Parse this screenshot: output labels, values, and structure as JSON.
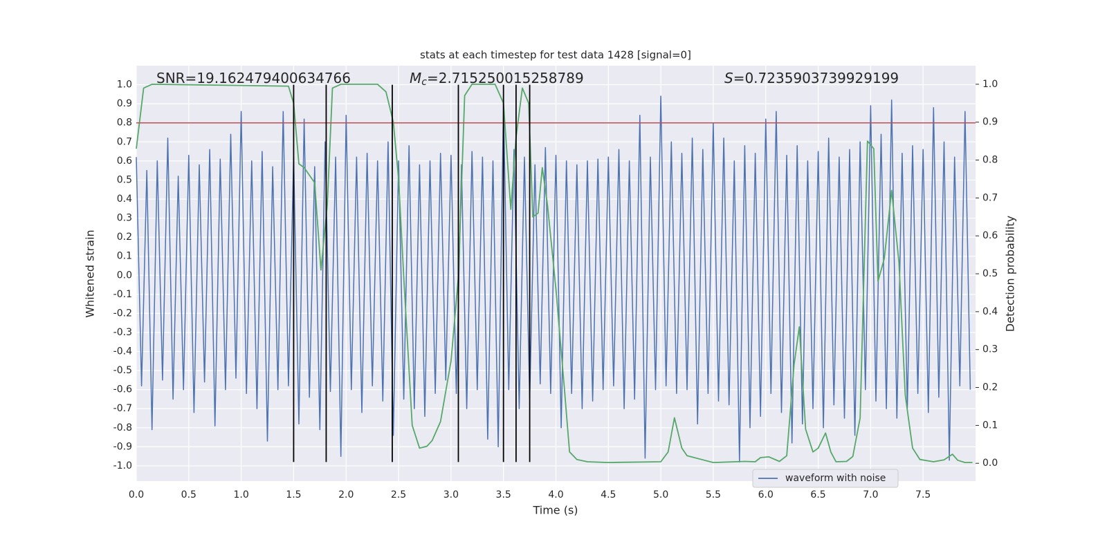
{
  "chart_data": {
    "type": "line",
    "title": "stats at each timestep for test data 1428 [signal=0]",
    "x_label": "Time (s)",
    "y_label": "Whitened strain",
    "y2_label": "Detection probability",
    "xlim": [
      0,
      8
    ],
    "ylim": [
      -1.08,
      1.1
    ],
    "y2lim": [
      -0.047,
      1.049
    ],
    "xticks": [
      {
        "value": 0,
        "label": "0.0"
      },
      0.5,
      {
        "value": 1,
        "label": "1.0"
      },
      1.5,
      {
        "value": 2,
        "label": "2.0"
      },
      2.5,
      {
        "value": 3,
        "label": "3.0"
      },
      3.5,
      {
        "value": 4,
        "label": "4.0"
      },
      4.5,
      {
        "value": 5,
        "label": "5.0"
      },
      5.5,
      {
        "value": 6,
        "label": "6.0"
      },
      6.5,
      {
        "value": 7,
        "label": "7.0"
      },
      7.5
    ],
    "yticks": [
      {
        "value": -1,
        "label": "-1.0"
      },
      -0.9,
      -0.8,
      -0.7,
      -0.6,
      -0.5,
      -0.4,
      -0.3,
      -0.2,
      -0.1,
      {
        "value": 0,
        "label": "0.0"
      },
      0.1,
      0.2,
      0.3,
      0.4,
      0.5,
      0.6,
      0.7,
      0.8,
      0.9,
      {
        "value": 1,
        "label": "1.0"
      }
    ],
    "y2ticks": [
      {
        "value": 0,
        "label": "0.0"
      },
      0.1,
      0.2,
      0.3,
      0.4,
      0.5,
      0.6,
      0.7,
      0.8,
      0.9,
      {
        "value": 1,
        "label": "1.0"
      }
    ],
    "grid": true,
    "background": "#eaeaf2",
    "legend": "lower right",
    "annotations": [
      {
        "text": "SNR=19.162479400634766"
      },
      {
        "symbol": "M",
        "subscript": "c",
        "text": "=2.715250015258789"
      },
      {
        "symbol": "S",
        "text": "=0.7235903739929199"
      }
    ],
    "threshold": 0.8,
    "threshold_color": "#c44e52",
    "vlines": {
      "x": [
        1.5,
        1.81,
        2.44,
        3.07,
        3.5,
        3.62,
        3.75
      ],
      "ymin": -0.98,
      "ymax": 1.0,
      "color": "#000000"
    },
    "series": [
      {
        "name": "waveform with noise",
        "color": "#4c72b0",
        "x": [
          0,
          0.05,
          0.1,
          0.15,
          0.2,
          0.25,
          0.3,
          0.35,
          0.4,
          0.45,
          0.5,
          0.55,
          0.6,
          0.65,
          0.7,
          0.75,
          0.8,
          0.85,
          0.9,
          0.95,
          1,
          1.05,
          1.1,
          1.15,
          1.2,
          1.25,
          1.3,
          1.35,
          1.4,
          1.45,
          1.5,
          1.55,
          1.6,
          1.65,
          1.7,
          1.75,
          1.8,
          1.85,
          1.9,
          1.95,
          2,
          2.05,
          2.1,
          2.15,
          2.2,
          2.25,
          2.3,
          2.35,
          2.4,
          2.45,
          2.5,
          2.55,
          2.6,
          2.65,
          2.7,
          2.75,
          2.8,
          2.85,
          2.9,
          2.95,
          3,
          3.05,
          3.1,
          3.15,
          3.2,
          3.25,
          3.3,
          3.35,
          3.4,
          3.45,
          3.5,
          3.55,
          3.6,
          3.65,
          3.7,
          3.75,
          3.8,
          3.85,
          3.9,
          3.95,
          4,
          4.05,
          4.1,
          4.15,
          4.2,
          4.25,
          4.3,
          4.35,
          4.4,
          4.45,
          4.5,
          4.55,
          4.6,
          4.65,
          4.7,
          4.75,
          4.8,
          4.85,
          4.9,
          4.95,
          5,
          5.05,
          5.1,
          5.15,
          5.2,
          5.25,
          5.3,
          5.35,
          5.4,
          5.45,
          5.5,
          5.55,
          5.6,
          5.65,
          5.7,
          5.75,
          5.8,
          5.85,
          5.9,
          5.95,
          6,
          6.05,
          6.1,
          6.15,
          6.2,
          6.25,
          6.3,
          6.35,
          6.4,
          6.45,
          6.5,
          6.55,
          6.6,
          6.65,
          6.7,
          6.75,
          6.8,
          6.85,
          6.9,
          6.95,
          7,
          7.05,
          7.1,
          7.15,
          7.2,
          7.25,
          7.3,
          7.35,
          7.4,
          7.45,
          7.5,
          7.55,
          7.6,
          7.65,
          7.7,
          7.75,
          7.8,
          7.85,
          7.9,
          7.95
        ],
        "values": [
          0.62,
          -0.58,
          0.55,
          -0.81,
          0.6,
          -0.55,
          0.72,
          -0.65,
          0.52,
          -0.6,
          0.63,
          -0.72,
          0.58,
          -0.56,
          0.66,
          -0.79,
          0.61,
          -0.6,
          0.74,
          -0.54,
          0.86,
          -0.62,
          0.6,
          -0.7,
          0.65,
          -0.87,
          0.57,
          -0.6,
          0.86,
          -0.58,
          0.62,
          -0.78,
          0.82,
          -0.64,
          0.57,
          -0.81,
          0.7,
          -0.61,
          0.62,
          -0.95,
          0.84,
          -0.6,
          0.62,
          -0.72,
          0.64,
          -0.58,
          0.6,
          -0.66,
          0.7,
          -0.84,
          0.6,
          -0.65,
          0.68,
          -0.7,
          0.58,
          -0.74,
          0.6,
          -0.62,
          0.64,
          -0.55,
          0.63,
          -0.62,
          0.58,
          -0.7,
          0.65,
          -0.6,
          0.62,
          -0.86,
          0.6,
          -0.9,
          0.9,
          -0.6,
          0.66,
          -0.7,
          0.62,
          -0.65,
          0.58,
          -0.57,
          0.67,
          -0.62,
          0.63,
          -0.8,
          0.6,
          -0.62,
          0.58,
          -0.7,
          0.6,
          -0.66,
          0.61,
          -0.6,
          0.62,
          -0.58,
          0.66,
          -0.7,
          0.6,
          -0.65,
          0.84,
          -0.96,
          0.62,
          -0.6,
          0.94,
          -0.58,
          0.7,
          -0.62,
          0.64,
          -0.6,
          0.72,
          -0.78,
          0.66,
          -0.62,
          0.8,
          -0.66,
          0.72,
          -0.68,
          0.6,
          -0.98,
          0.68,
          -0.8,
          0.64,
          -0.74,
          0.82,
          -0.62,
          0.86,
          -0.72,
          0.63,
          -0.88,
          0.68,
          -0.78,
          0.6,
          -0.7,
          0.65,
          -0.8,
          0.72,
          -0.68,
          0.62,
          -0.75,
          0.66,
          -0.84,
          0.7,
          -0.6,
          0.89,
          -0.66,
          0.74,
          -0.7,
          0.92,
          -0.75,
          0.64,
          -0.7,
          0.68,
          -0.62,
          0.66,
          -0.72,
          0.88,
          -0.64,
          0.7,
          -0.97,
          0.62,
          -0.58,
          0.86,
          -0.6
        ]
      },
      {
        "color": "#55a868",
        "axis": "y2",
        "x": [
          0,
          0.07,
          0.15,
          1.45,
          1.5,
          1.55,
          1.6,
          1.7,
          1.76,
          1.82,
          1.87,
          1.95,
          2.3,
          2.38,
          2.45,
          2.5,
          2.55,
          2.63,
          2.7,
          2.77,
          2.82,
          2.9,
          3,
          3.07,
          3.13,
          3.2,
          3.3,
          3.42,
          3.5,
          3.57,
          3.62,
          3.68,
          3.74,
          3.78,
          3.83,
          3.87,
          3.92,
          4,
          4.08,
          4.13,
          4.2,
          4.3,
          4.5,
          5,
          5.07,
          5.13,
          5.2,
          5.25,
          5.5,
          5.8,
          5.9,
          5.95,
          6.03,
          6.13,
          6.2,
          6.27,
          6.32,
          6.38,
          6.45,
          6.5,
          6.57,
          6.62,
          6.67,
          6.77,
          6.83,
          6.9,
          6.97,
          7.03,
          7.07,
          7.13,
          7.2,
          7.27,
          7.33,
          7.4,
          7.47,
          7.6,
          7.7,
          7.78,
          7.83,
          7.9,
          7.97
        ],
        "values": [
          0.83,
          0.99,
          1.0,
          0.995,
          0.95,
          0.79,
          0.78,
          0.74,
          0.51,
          0.68,
          0.99,
          1.0,
          1.0,
          0.98,
          0.9,
          0.75,
          0.49,
          0.1,
          0.04,
          0.045,
          0.06,
          0.11,
          0.27,
          0.49,
          0.97,
          1.0,
          1.0,
          1.0,
          0.95,
          0.67,
          0.86,
          0.99,
          0.95,
          0.65,
          0.66,
          0.78,
          0.68,
          0.46,
          0.2,
          0.03,
          0.01,
          0.004,
          0.002,
          0.004,
          0.03,
          0.12,
          0.04,
          0.02,
          0.002,
          0.005,
          0.004,
          0.015,
          0.017,
          0.005,
          0.02,
          0.26,
          0.36,
          0.09,
          0.03,
          0.04,
          0.08,
          0.03,
          0.004,
          0.005,
          0.018,
          0.12,
          0.85,
          0.83,
          0.48,
          0.54,
          0.72,
          0.53,
          0.18,
          0.04,
          0.01,
          0.004,
          0.009,
          0.024,
          0.008,
          0.002,
          0.002
        ]
      }
    ]
  }
}
